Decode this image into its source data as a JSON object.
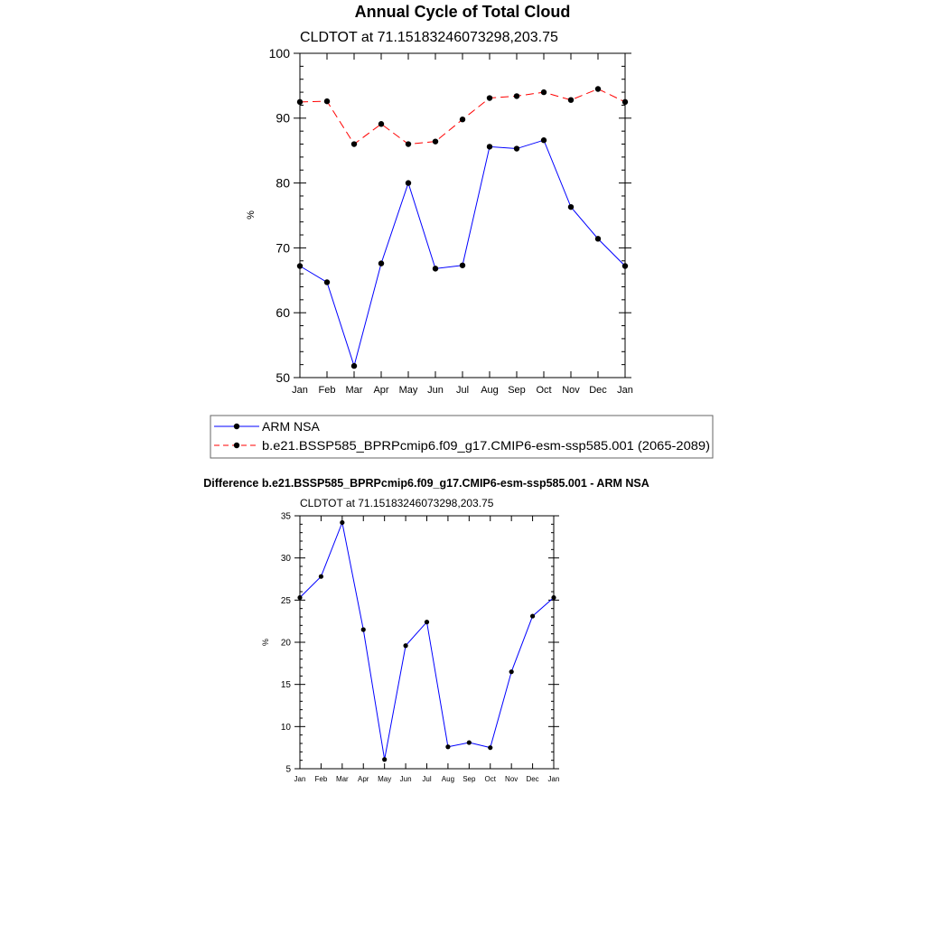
{
  "chart_data": [
    {
      "type": "line",
      "title": "Annual Cycle of Total Cloud",
      "subtitle": "CLDTOT at 71.15183246073298,203.75",
      "ylabel": "%",
      "xlabel": "",
      "ylim": [
        50,
        100
      ],
      "yticks": [
        50,
        60,
        70,
        80,
        90,
        100
      ],
      "categories": [
        "Jan",
        "Feb",
        "Mar",
        "Apr",
        "May",
        "Jun",
        "Jul",
        "Aug",
        "Sep",
        "Oct",
        "Nov",
        "Dec",
        "Jan"
      ],
      "series": [
        {
          "name": "ARM NSA",
          "color": "#0000ff",
          "dash": "solid",
          "values": [
            67.2,
            64.7,
            51.8,
            67.6,
            80.0,
            66.8,
            67.3,
            85.6,
            85.3,
            86.6,
            76.3,
            71.4,
            67.2
          ]
        },
        {
          "name": "b.e21.BSSP585_BPRPcmip6.f09_g17.CMIP6-esm-ssp585.001 (2065-2089)",
          "color": "#ff0000",
          "dash": "dashed",
          "values": [
            92.5,
            92.6,
            86.0,
            89.1,
            86.0,
            86.4,
            89.8,
            93.1,
            93.4,
            94.0,
            92.8,
            94.5,
            92.5
          ]
        }
      ],
      "legend_position": "below"
    },
    {
      "type": "line",
      "title": "Difference b.e21.BSSP585_BPRPcmip6.f09_g17.CMIP6-esm-ssp585.001 - ARM NSA",
      "subtitle": "CLDTOT at 71.15183246073298,203.75",
      "ylabel": "%",
      "xlabel": "",
      "ylim": [
        5,
        35
      ],
      "yticks": [
        5,
        10,
        15,
        20,
        25,
        30,
        35
      ],
      "categories": [
        "Jan",
        "Feb",
        "Mar",
        "Apr",
        "May",
        "Jun",
        "Jul",
        "Aug",
        "Sep",
        "Oct",
        "Nov",
        "Dec",
        "Jan"
      ],
      "series": [
        {
          "name": "Difference",
          "color": "#0000ff",
          "dash": "solid",
          "values": [
            25.3,
            27.8,
            34.2,
            21.5,
            6.1,
            19.6,
            22.4,
            7.6,
            8.1,
            7.5,
            16.5,
            23.1,
            25.3
          ]
        }
      ]
    }
  ]
}
